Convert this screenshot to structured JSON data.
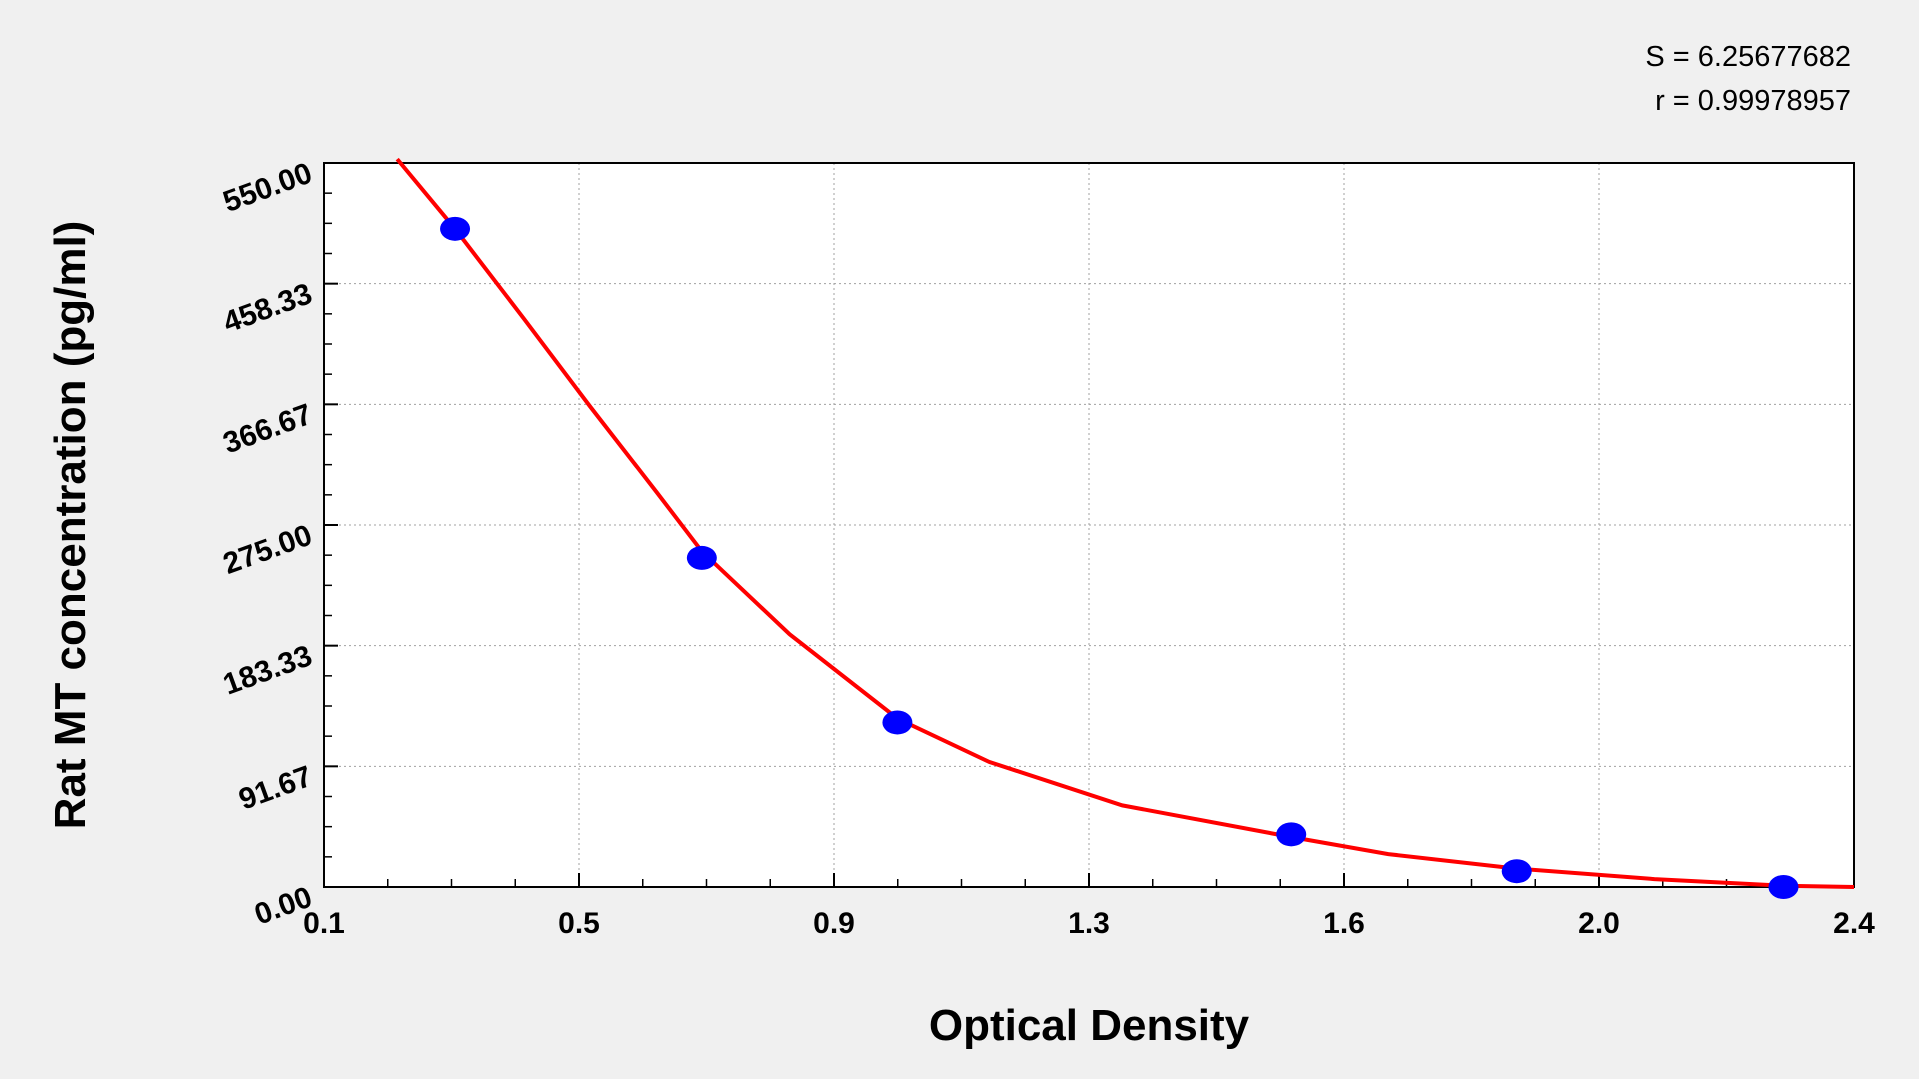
{
  "chart_data": {
    "type": "scatter",
    "title": "",
    "xlabel": "Optical Density",
    "ylabel": "Rat MT concentration (pg/ml)",
    "xlim": [
      0.1,
      2.4
    ],
    "ylim": [
      0,
      550
    ],
    "x_ticks": [
      "0.1",
      "0.5",
      "0.9",
      "1.3",
      "1.6",
      "2.0",
      "2.4"
    ],
    "y_ticks": [
      "0.00",
      "91.67",
      "183.33",
      "275.00",
      "366.67",
      "458.33",
      "550.00"
    ],
    "grid": true,
    "legend": "none",
    "annotations": [
      "S = 6.25677682",
      "r = 0.99978957"
    ],
    "colors": {
      "points": "#0000ff",
      "curve": "#ff0000",
      "plot_bg": "#ffffff",
      "page_bg": "#f0f0f0",
      "grid": "#a0a0a0"
    },
    "points": {
      "x": [
        0.297,
        0.668,
        0.962,
        1.554,
        1.893,
        2.294
      ],
      "y": [
        500,
        250,
        125,
        40,
        12,
        0
      ]
    },
    "fit_curve": {
      "x": [
        0.21,
        0.297,
        0.4,
        0.5,
        0.6,
        0.668,
        0.8,
        0.962,
        1.1,
        1.3,
        1.554,
        1.7,
        1.893,
        2.1,
        2.294,
        2.4
      ],
      "y": [
        553,
        500,
        432,
        365,
        300,
        255,
        192,
        128,
        95,
        62,
        38,
        25,
        14,
        6,
        1,
        0
      ]
    }
  }
}
